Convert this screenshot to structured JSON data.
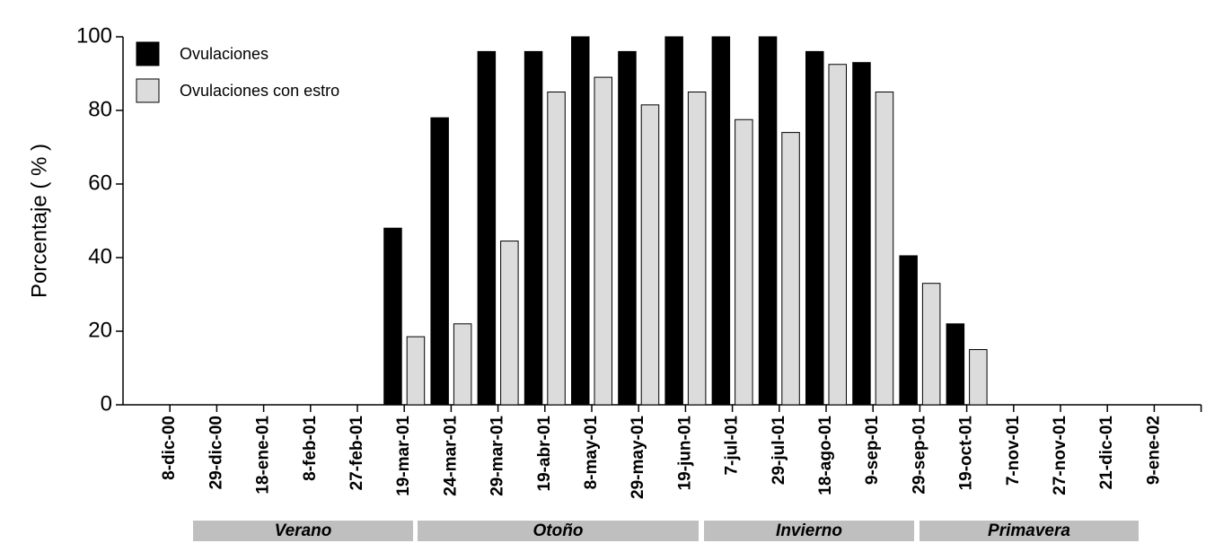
{
  "chart_data": {
    "type": "bar",
    "y_label": "Porcentaje ( % )",
    "categories": [
      "8-dic-00",
      "29-dic-00",
      "18-ene-01",
      "8-feb-01",
      "27-feb-01",
      "19-mar-01",
      "24-mar-01",
      "29-mar-01",
      "19-abr-01",
      "8-may-01",
      "29-may-01",
      "19-jun-01",
      "7-jul-01",
      "29-jul-01",
      "18-ago-01",
      "9-sep-01",
      "29-sep-01",
      "19-oct-01",
      "7-nov-01",
      "27-nov-01",
      "21-dic-01",
      "9-ene-02"
    ],
    "series": [
      {
        "name": "Ovulaciones",
        "color": "#000000",
        "values": [
          0,
          0,
          0,
          0,
          0,
          48,
          78,
          96,
          96,
          100,
          96,
          100,
          100,
          100,
          96,
          93,
          40.5,
          22,
          0,
          0,
          0,
          0
        ]
      },
      {
        "name": "Ovulaciones con estro",
        "color": "#dcdcdc",
        "values": [
          0,
          0,
          0,
          0,
          0,
          18.5,
          22,
          44.5,
          85,
          89,
          81.5,
          85,
          77.5,
          74,
          92.5,
          85,
          33,
          15,
          0,
          0,
          0,
          0
        ]
      }
    ],
    "ylim": [
      0,
      100
    ],
    "yticks": [
      0,
      20,
      40,
      60,
      80,
      100
    ],
    "seasons": [
      "Verano",
      "Otoño",
      "Invierno",
      "Primavera"
    ],
    "legend": "upper-left"
  }
}
